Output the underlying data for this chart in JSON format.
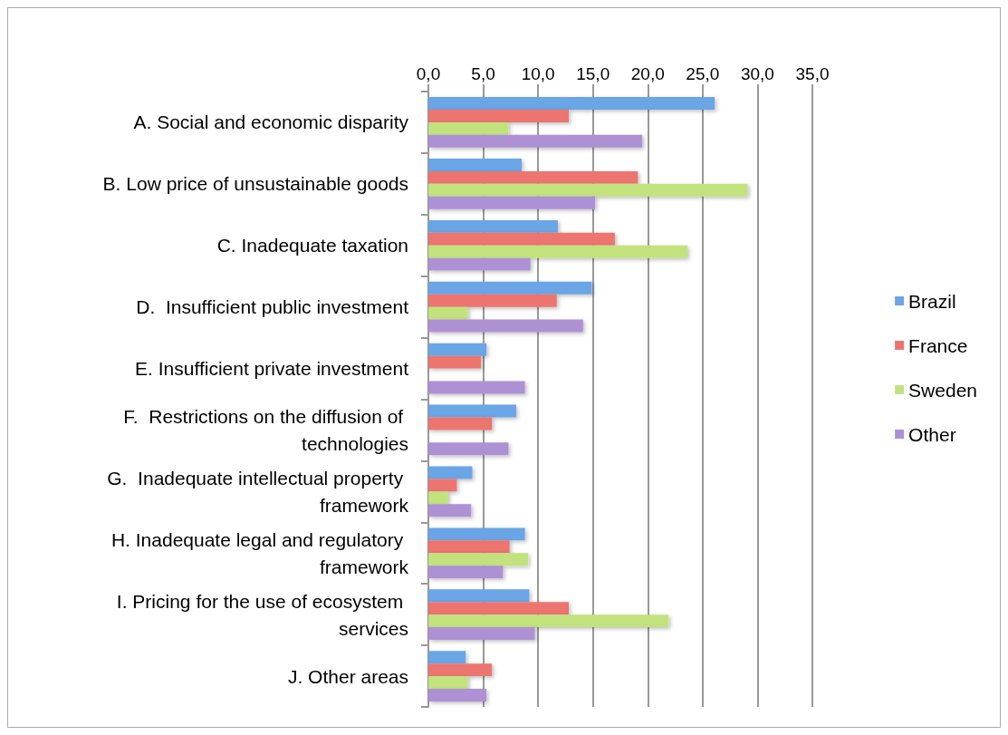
{
  "chart_data": {
    "type": "bar",
    "orientation": "horizontal",
    "categories": [
      "A. Social and economic disparity",
      "B. Low price of unsustainable goods",
      "C. Inadequate taxation",
      "D.  Insufficient public investment",
      "E. Insufficient private investment",
      "F.  Restrictions on the diffusion of technologies",
      "G.  Inadequate intellectual property framework",
      "H. Inadequate legal and regulatory framework",
      "I. Pricing for the use of ecosystem services",
      "J. Other areas"
    ],
    "series": [
      {
        "name": "Brazil",
        "color": "#6aa5e6",
        "values": [
          26.1,
          8.5,
          11.8,
          14.9,
          5.3,
          8.0,
          4.0,
          8.8,
          9.2,
          3.4
        ]
      },
      {
        "name": "France",
        "color": "#ec7470",
        "values": [
          12.8,
          19.1,
          17.0,
          11.7,
          4.8,
          5.8,
          2.6,
          7.4,
          12.8,
          5.8
        ]
      },
      {
        "name": "Sweden",
        "color": "#c2e27e",
        "values": [
          7.3,
          29.1,
          23.6,
          3.6,
          null,
          null,
          1.8,
          9.1,
          21.9,
          3.6
        ]
      },
      {
        "name": "Other",
        "color": "#ad91d4",
        "values": [
          19.5,
          15.2,
          9.3,
          14.1,
          8.8,
          7.3,
          3.9,
          6.8,
          9.7,
          5.3
        ]
      }
    ],
    "xlim": [
      0,
      35
    ],
    "xticks": [
      {
        "value": 0,
        "label": "0,0"
      },
      {
        "value": 5,
        "label": "5,0"
      },
      {
        "value": 10,
        "label": "10,0"
      },
      {
        "value": 15,
        "label": "15,0"
      },
      {
        "value": 20,
        "label": "20,0"
      },
      {
        "value": 25,
        "label": "25,0"
      },
      {
        "value": 30,
        "label": "30,0"
      },
      {
        "value": 35,
        "label": "35,0"
      }
    ],
    "grid": "x",
    "legend": "right"
  }
}
